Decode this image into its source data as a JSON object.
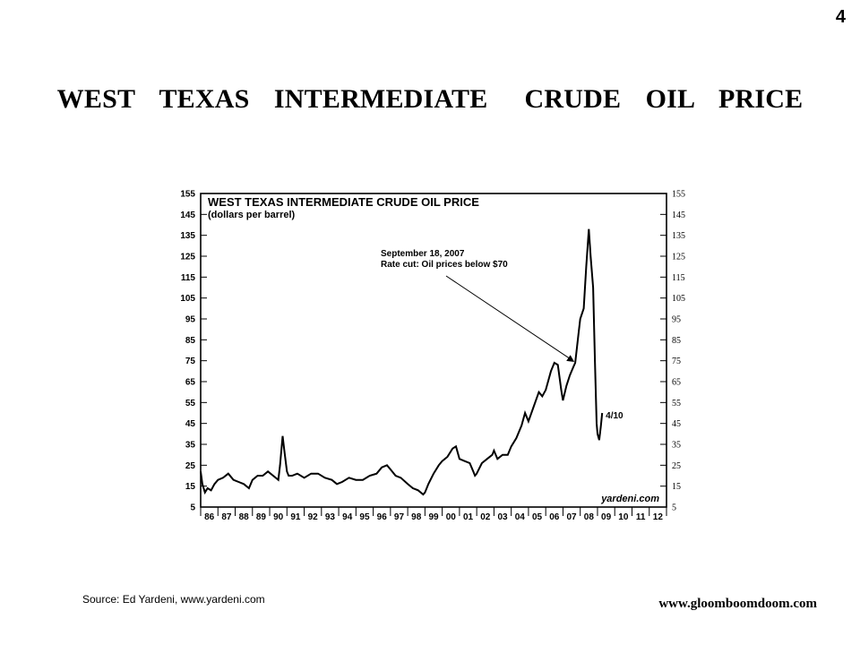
{
  "page": {
    "number": "4",
    "title": "WEST  TEXAS  INTERMEDIATE   CRUDE  OIL  PRICE",
    "source": "Source: Ed Yardeni, www.yardeni.com",
    "url": "www.gloomboomdoom.com"
  },
  "chart_data": {
    "type": "line",
    "title": "WEST TEXAS INTERMEDIATE CRUDE OIL PRICE",
    "subtitle": "(dollars per barrel)",
    "xlabel": "",
    "ylabel": "",
    "ylim": [
      5,
      155
    ],
    "yticks": [
      5,
      15,
      25,
      35,
      45,
      55,
      65,
      75,
      85,
      95,
      105,
      115,
      125,
      135,
      145,
      155
    ],
    "xlim": [
      1986,
      2013
    ],
    "xtick_labels": [
      "86",
      "87",
      "88",
      "89",
      "90",
      "91",
      "92",
      "93",
      "94",
      "95",
      "96",
      "97",
      "98",
      "99",
      "00",
      "01",
      "02",
      "03",
      "04",
      "05",
      "06",
      "07",
      "08",
      "09",
      "10",
      "11",
      "12"
    ],
    "grid": false,
    "legend": "none",
    "annotations": [
      {
        "text_line1": "September 18, 2007",
        "text_line2": "Rate cut: Oil prices below $70",
        "x": 2007.71,
        "y": 74
      },
      {
        "text": "4/10",
        "x": 2009.27,
        "y": 50
      }
    ],
    "watermark": "yardeni.com",
    "series": [
      {
        "color": "#000000",
        "x": [
          1986.0,
          1986.1,
          1986.25,
          1986.4,
          1986.6,
          1986.8,
          1987.0,
          1987.3,
          1987.6,
          1987.9,
          1988.2,
          1988.5,
          1988.8,
          1989.0,
          1989.3,
          1989.6,
          1989.9,
          1990.2,
          1990.5,
          1990.6,
          1990.75,
          1990.85,
          1991.0,
          1991.1,
          1991.3,
          1991.6,
          1992.0,
          1992.4,
          1992.8,
          1993.2,
          1993.6,
          1993.9,
          1994.2,
          1994.6,
          1995.0,
          1995.4,
          1995.8,
          1996.2,
          1996.5,
          1996.8,
          1997.0,
          1997.3,
          1997.6,
          1998.0,
          1998.3,
          1998.6,
          1998.9,
          1999.0,
          1999.2,
          1999.5,
          1999.8,
          2000.0,
          2000.3,
          2000.6,
          2000.8,
          2001.0,
          2001.3,
          2001.6,
          2001.8,
          2001.9,
          2002.0,
          2002.3,
          2002.6,
          2002.9,
          2003.0,
          2003.2,
          2003.5,
          2003.8,
          2004.0,
          2004.3,
          2004.6,
          2004.8,
          2005.0,
          2005.3,
          2005.6,
          2005.8,
          2006.0,
          2006.3,
          2006.5,
          2006.7,
          2006.9,
          2007.0,
          2007.2,
          2007.4,
          2007.6,
          2007.71,
          2007.9,
          2008.0,
          2008.2,
          2008.35,
          2008.5,
          2008.6,
          2008.75,
          2008.85,
          2008.95,
          2009.0,
          2009.1,
          2009.2,
          2009.27
        ],
        "values": [
          22,
          16,
          12,
          14,
          13,
          16,
          18,
          19,
          21,
          18,
          17,
          16,
          14,
          18,
          20,
          20,
          22,
          20,
          18,
          25,
          39,
          32,
          22,
          20,
          20,
          21,
          19,
          21,
          21,
          19,
          18,
          16,
          17,
          19,
          18,
          18,
          20,
          21,
          24,
          25,
          23,
          20,
          19,
          16,
          14,
          13,
          11,
          12,
          16,
          21,
          25,
          27,
          29,
          33,
          34,
          28,
          27,
          26,
          22,
          20,
          21,
          26,
          28,
          30,
          32,
          28,
          30,
          30,
          34,
          38,
          44,
          50,
          46,
          53,
          60,
          58,
          61,
          70,
          74,
          73,
          61,
          56,
          63,
          68,
          72,
          74,
          88,
          95,
          100,
          120,
          138,
          125,
          110,
          75,
          45,
          40,
          37,
          44,
          50
        ]
      }
    ]
  }
}
